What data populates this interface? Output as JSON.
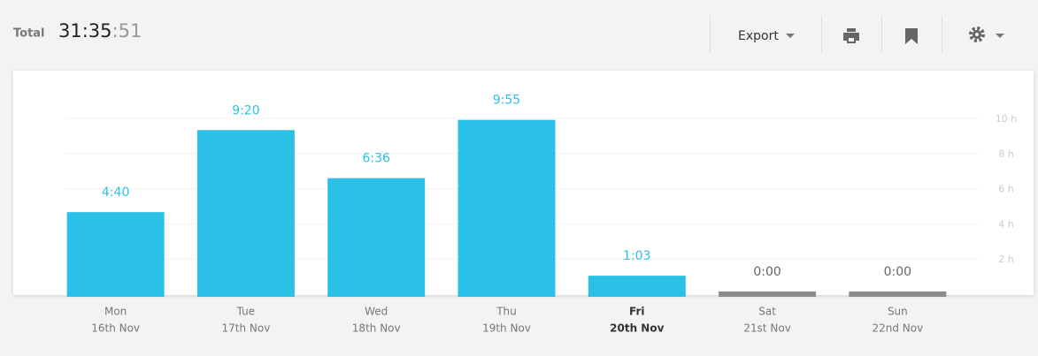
{
  "header": {
    "label": "Total",
    "time_main": "31:35",
    "time_seconds": ":51",
    "export": "Export"
  },
  "chart_data": {
    "type": "bar",
    "categories": [
      "Mon",
      "Tue",
      "Wed",
      "Thu",
      "Fri",
      "Sat",
      "Sun"
    ],
    "dates": [
      "16th Nov",
      "17th Nov",
      "18th Nov",
      "19th Nov",
      "20th Nov",
      "21st Nov",
      "22nd Nov"
    ],
    "highlight_category": "Fri",
    "values": [
      4.6667,
      9.3333,
      6.6,
      9.9167,
      1.05,
      0,
      0
    ],
    "value_labels": [
      "4:40",
      "9:20",
      "6:36",
      "9:55",
      "1:03",
      "0:00",
      "0:00"
    ],
    "color": "#2bc0e6",
    "empty_color": "#8a8a8a",
    "ylim": [
      0,
      10
    ],
    "yticks": [
      {
        "value": 2,
        "label": "2 h"
      },
      {
        "value": 4,
        "label": "4 h"
      },
      {
        "value": 6,
        "label": "6 h"
      },
      {
        "value": 8,
        "label": "8 h"
      },
      {
        "value": 10,
        "label": "10 h"
      }
    ],
    "grid": true
  }
}
